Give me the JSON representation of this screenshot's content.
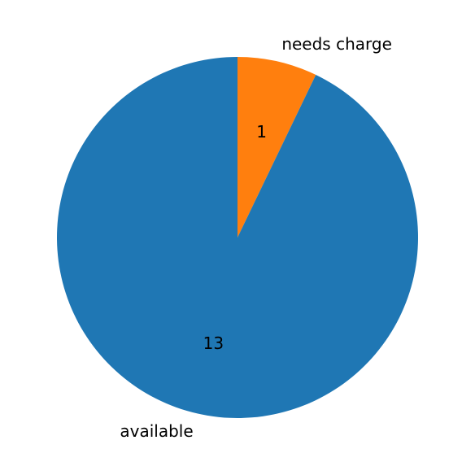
{
  "chart_data": {
    "type": "pie",
    "labels": [
      "needs charge",
      "available"
    ],
    "values": [
      1,
      13
    ],
    "value_labels": [
      "1",
      "13"
    ],
    "colors": [
      "#ff7f0e",
      "#1f77b4"
    ],
    "start": "12 o'clock, clockwise",
    "legend": "none"
  }
}
